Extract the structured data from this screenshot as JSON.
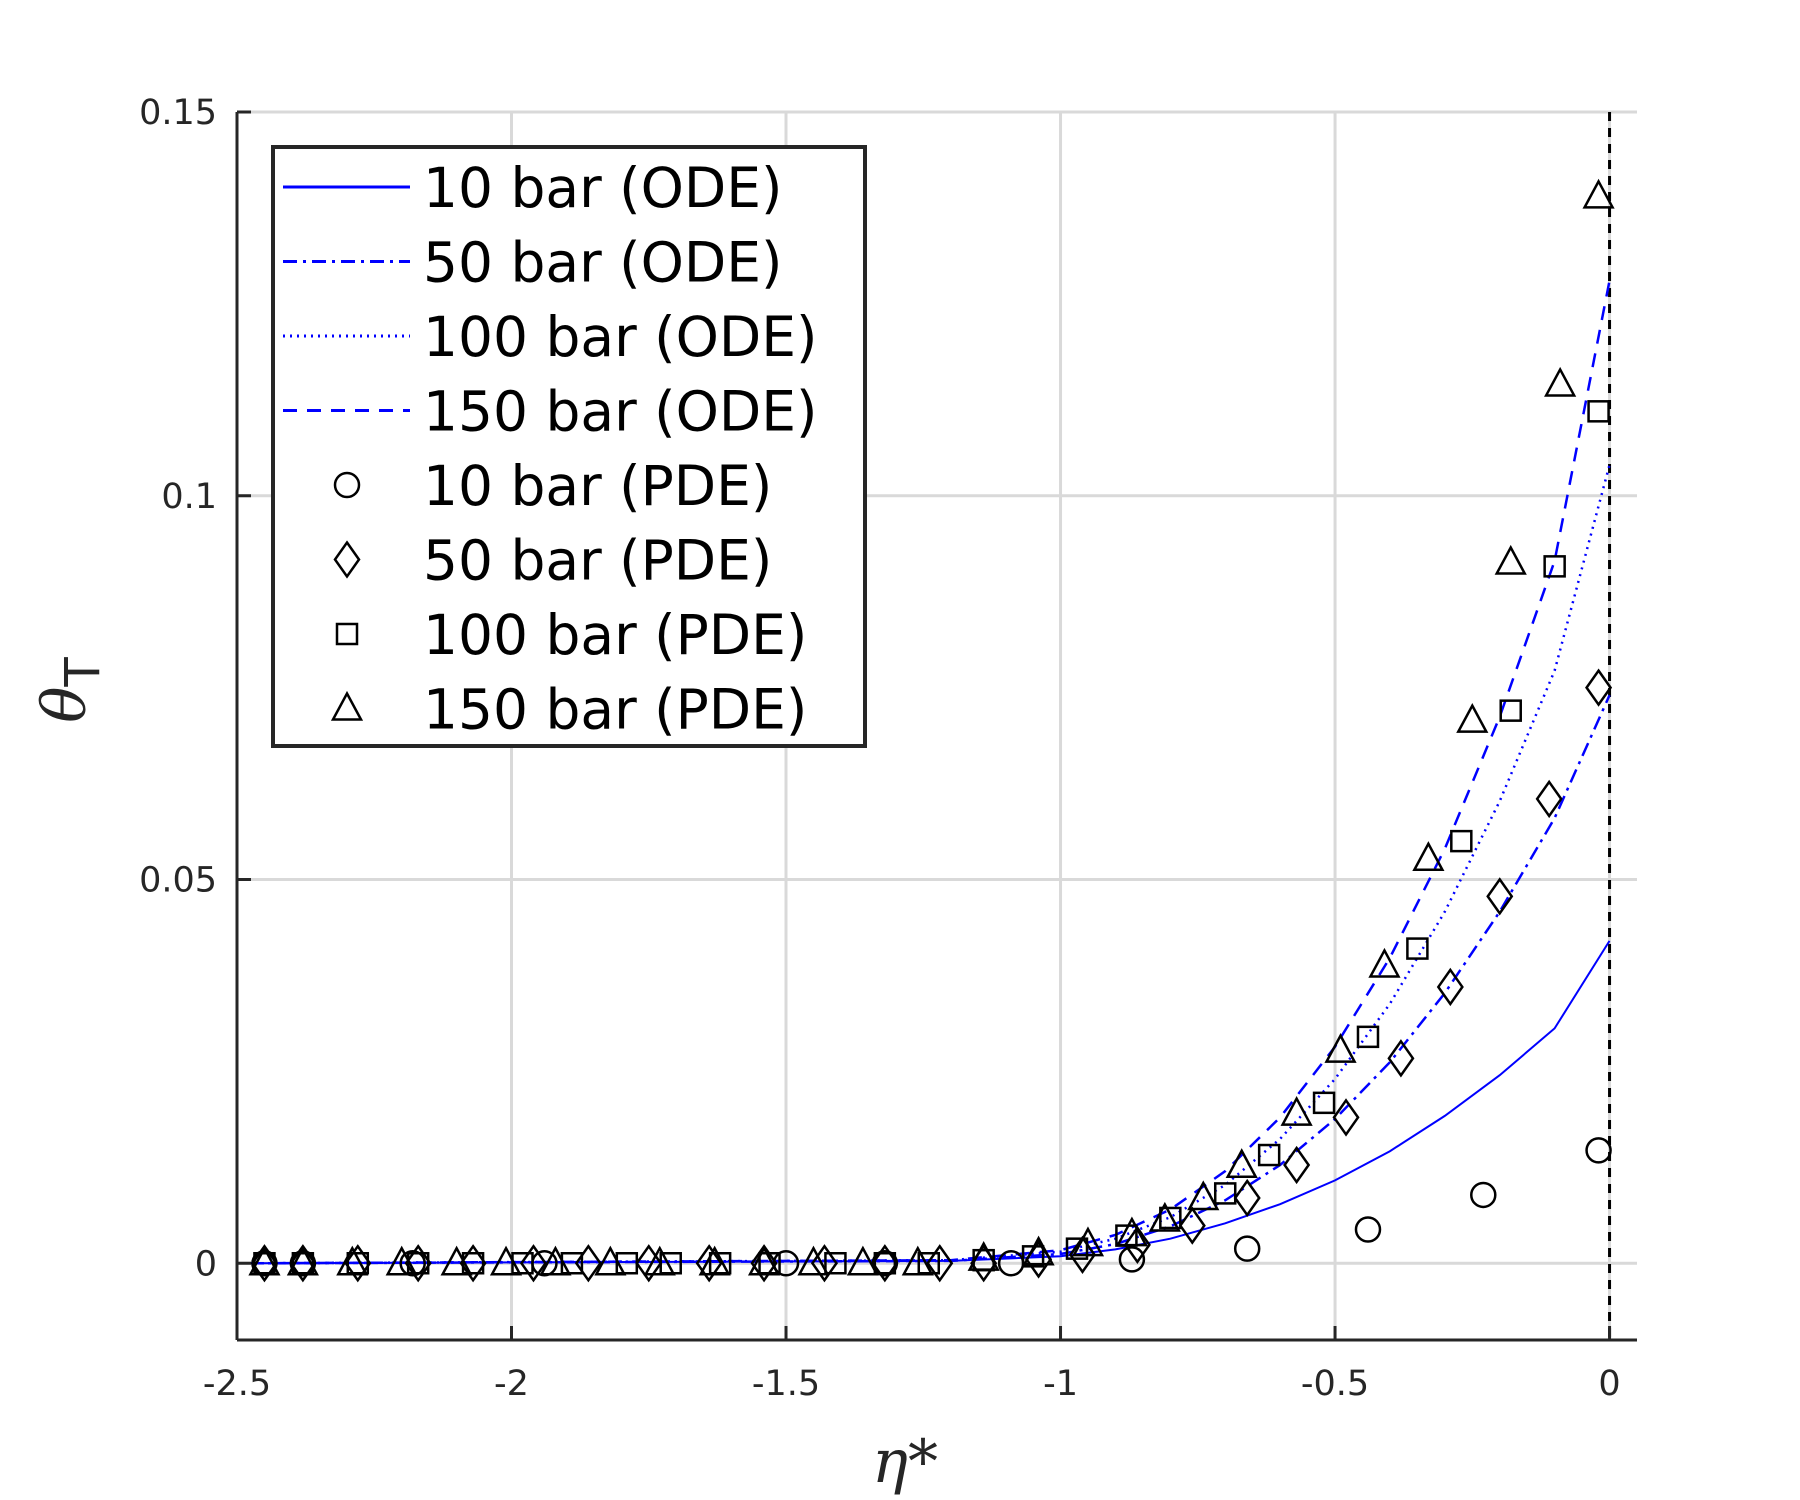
{
  "chart_data": {
    "type": "scatter",
    "xlabel": "η*",
    "ylabel": "θ",
    "ylabel_subscript": "T",
    "xlim": [
      -2.5,
      0.05
    ],
    "ylim": [
      -0.01,
      0.15
    ],
    "xticks": [
      -2.5,
      -2,
      -1.5,
      -1,
      -0.5,
      0
    ],
    "xtick_labels": [
      "-2.5",
      "-2",
      "-1.5",
      "-1",
      "-0.5",
      "0"
    ],
    "yticks": [
      0,
      0.05,
      0.1,
      0.15
    ],
    "ytick_labels": [
      "0",
      "0.05",
      "0.1",
      "0.15"
    ],
    "grid": true,
    "legend_position": "top-left",
    "reference_line": {
      "x": 0,
      "style": "dashed",
      "color": "#000000"
    },
    "series": [
      {
        "name": "10 bar (ODE)",
        "kind": "line",
        "style": "solid",
        "color": "#0000ff",
        "x": [
          -2.48,
          -1.2,
          -1.0,
          -0.9,
          -0.8,
          -0.7,
          -0.6,
          -0.5,
          -0.4,
          -0.3,
          -0.2,
          -0.1,
          0
        ],
        "y": [
          0,
          0.0003,
          0.0009,
          0.0018,
          0.0032,
          0.0052,
          0.0077,
          0.0108,
          0.0146,
          0.0192,
          0.0245,
          0.0306,
          0.042
        ]
      },
      {
        "name": "50 bar (ODE)",
        "kind": "line",
        "style": "dashdot",
        "color": "#0000ff",
        "x": [
          -2.48,
          -1.2,
          -1.0,
          -0.9,
          -0.8,
          -0.7,
          -0.6,
          -0.5,
          -0.4,
          -0.3,
          -0.2,
          -0.1,
          0
        ],
        "y": [
          0,
          0.0003,
          0.0012,
          0.0025,
          0.0048,
          0.0082,
          0.0128,
          0.0188,
          0.0262,
          0.0352,
          0.0458,
          0.058,
          0.074
        ]
      },
      {
        "name": "100 bar (ODE)",
        "kind": "line",
        "style": "dotted",
        "color": "#0000ff",
        "x": [
          -2.48,
          -1.2,
          -1.0,
          -0.9,
          -0.8,
          -0.7,
          -0.6,
          -0.5,
          -0.4,
          -0.3,
          -0.2,
          -0.1,
          0
        ],
        "y": [
          0,
          0.0004,
          0.0015,
          0.0032,
          0.006,
          0.0102,
          0.0162,
          0.024,
          0.0338,
          0.0458,
          0.0602,
          0.0772,
          0.104
        ]
      },
      {
        "name": "150 bar (ODE)",
        "kind": "line",
        "style": "dashed",
        "color": "#0000ff",
        "x": [
          -2.48,
          -1.2,
          -1.0,
          -0.9,
          -0.8,
          -0.7,
          -0.6,
          -0.5,
          -0.4,
          -0.3,
          -0.2,
          -0.1,
          0
        ],
        "y": [
          0,
          0.0004,
          0.0017,
          0.0037,
          0.007,
          0.012,
          0.019,
          0.0282,
          0.0398,
          0.054,
          0.0712,
          0.0915,
          0.128
        ]
      },
      {
        "name": "10 bar (PDE)",
        "kind": "marker",
        "marker": "circle",
        "color": "#000000",
        "x": [
          -2.45,
          -2.38,
          -2.18,
          -1.94,
          -1.5,
          -1.32,
          -1.09,
          -0.87,
          -0.66,
          -0.44,
          -0.23,
          -0.02
        ],
        "y": [
          0,
          0,
          0,
          0,
          0,
          0,
          0,
          0.0005,
          0.0019,
          0.0044,
          0.0089,
          0.0147
        ]
      },
      {
        "name": "50 bar (PDE)",
        "kind": "marker",
        "marker": "diamond",
        "color": "#000000",
        "x": [
          -2.45,
          -2.38,
          -2.28,
          -2.17,
          -2.07,
          -1.96,
          -1.86,
          -1.75,
          -1.64,
          -1.54,
          -1.43,
          -1.32,
          -1.22,
          -1.14,
          -1.04,
          -0.96,
          -0.86,
          -0.76,
          -0.66,
          -0.57,
          -0.48,
          -0.38,
          -0.29,
          -0.2,
          -0.11,
          -0.02
        ],
        "y": [
          0,
          0,
          0,
          0,
          0,
          0,
          0,
          0,
          0,
          0,
          0,
          0,
          0,
          0,
          0.0005,
          0.0011,
          0.0024,
          0.0049,
          0.0085,
          0.0128,
          0.019,
          0.0267,
          0.036,
          0.0478,
          0.0605,
          0.075
        ]
      },
      {
        "name": "100 bar (PDE)",
        "kind": "marker",
        "marker": "square",
        "color": "#000000",
        "x": [
          -2.45,
          -2.38,
          -2.28,
          -2.17,
          -2.07,
          -1.98,
          -1.89,
          -1.79,
          -1.71,
          -1.62,
          -1.53,
          -1.41,
          -1.32,
          -1.24,
          -1.14,
          -1.05,
          -0.97,
          -0.88,
          -0.8,
          -0.7,
          -0.62,
          -0.52,
          -0.44,
          -0.35,
          -0.27,
          -0.18,
          -0.1,
          -0.02
        ],
        "y": [
          0,
          0,
          0,
          0,
          0,
          0,
          0,
          0,
          0,
          0,
          0,
          0,
          0,
          0,
          0.0004,
          0.0009,
          0.0019,
          0.0036,
          0.0059,
          0.0091,
          0.0141,
          0.0209,
          0.0295,
          0.041,
          0.055,
          0.072,
          0.0908,
          0.111
        ]
      },
      {
        "name": "150 bar (PDE)",
        "kind": "marker",
        "marker": "triangle",
        "color": "#000000",
        "x": [
          -2.45,
          -2.38,
          -2.29,
          -2.2,
          -2.1,
          -2.01,
          -1.92,
          -1.82,
          -1.73,
          -1.63,
          -1.54,
          -1.45,
          -1.36,
          -1.26,
          -1.14,
          -1.04,
          -0.95,
          -0.87,
          -0.81,
          -0.74,
          -0.67,
          -0.57,
          -0.49,
          -0.41,
          -0.33,
          -0.25,
          -0.18,
          -0.09,
          -0.02
        ],
        "y": [
          0,
          0,
          0,
          0,
          0,
          0,
          0,
          0,
          0,
          0,
          0,
          0,
          0,
          0,
          0.0006,
          0.0013,
          0.0025,
          0.0038,
          0.0057,
          0.0085,
          0.0127,
          0.0195,
          0.0277,
          0.0388,
          0.0527,
          0.0707,
          0.0913,
          0.1145,
          0.139
        ]
      }
    ]
  }
}
